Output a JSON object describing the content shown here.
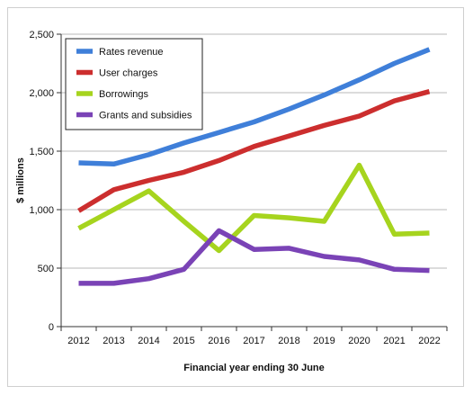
{
  "chart_data": {
    "type": "line",
    "x": [
      "2012",
      "2013",
      "2014",
      "2015",
      "2016",
      "2017",
      "2018",
      "2019",
      "2020",
      "2021",
      "2022"
    ],
    "series": [
      {
        "name": "Rates revenue",
        "color": "#3f7fd9",
        "values": [
          1400,
          1390,
          1470,
          1570,
          1660,
          1750,
          1860,
          1980,
          2110,
          2250,
          2370
        ]
      },
      {
        "name": "User charges",
        "color": "#cc2e2e",
        "values": [
          990,
          1170,
          1250,
          1320,
          1420,
          1540,
          1630,
          1720,
          1800,
          1930,
          2010
        ]
      },
      {
        "name": "Borrowings",
        "color": "#a6d41e",
        "values": [
          840,
          1000,
          1160,
          900,
          650,
          950,
          930,
          900,
          1380,
          790,
          800
        ]
      },
      {
        "name": "Grants and subsidies",
        "color": "#7a43b6",
        "values": [
          370,
          370,
          410,
          490,
          820,
          660,
          670,
          600,
          570,
          490,
          480
        ]
      }
    ],
    "yticks": [
      "0",
      "500",
      "1,000",
      "1,500",
      "2,000",
      "2,500"
    ],
    "ylim": [
      0,
      2500
    ],
    "xlabel": "Financial year ending 30 June",
    "ylabel": "$ millions",
    "grid": true,
    "legend": "top-left"
  }
}
